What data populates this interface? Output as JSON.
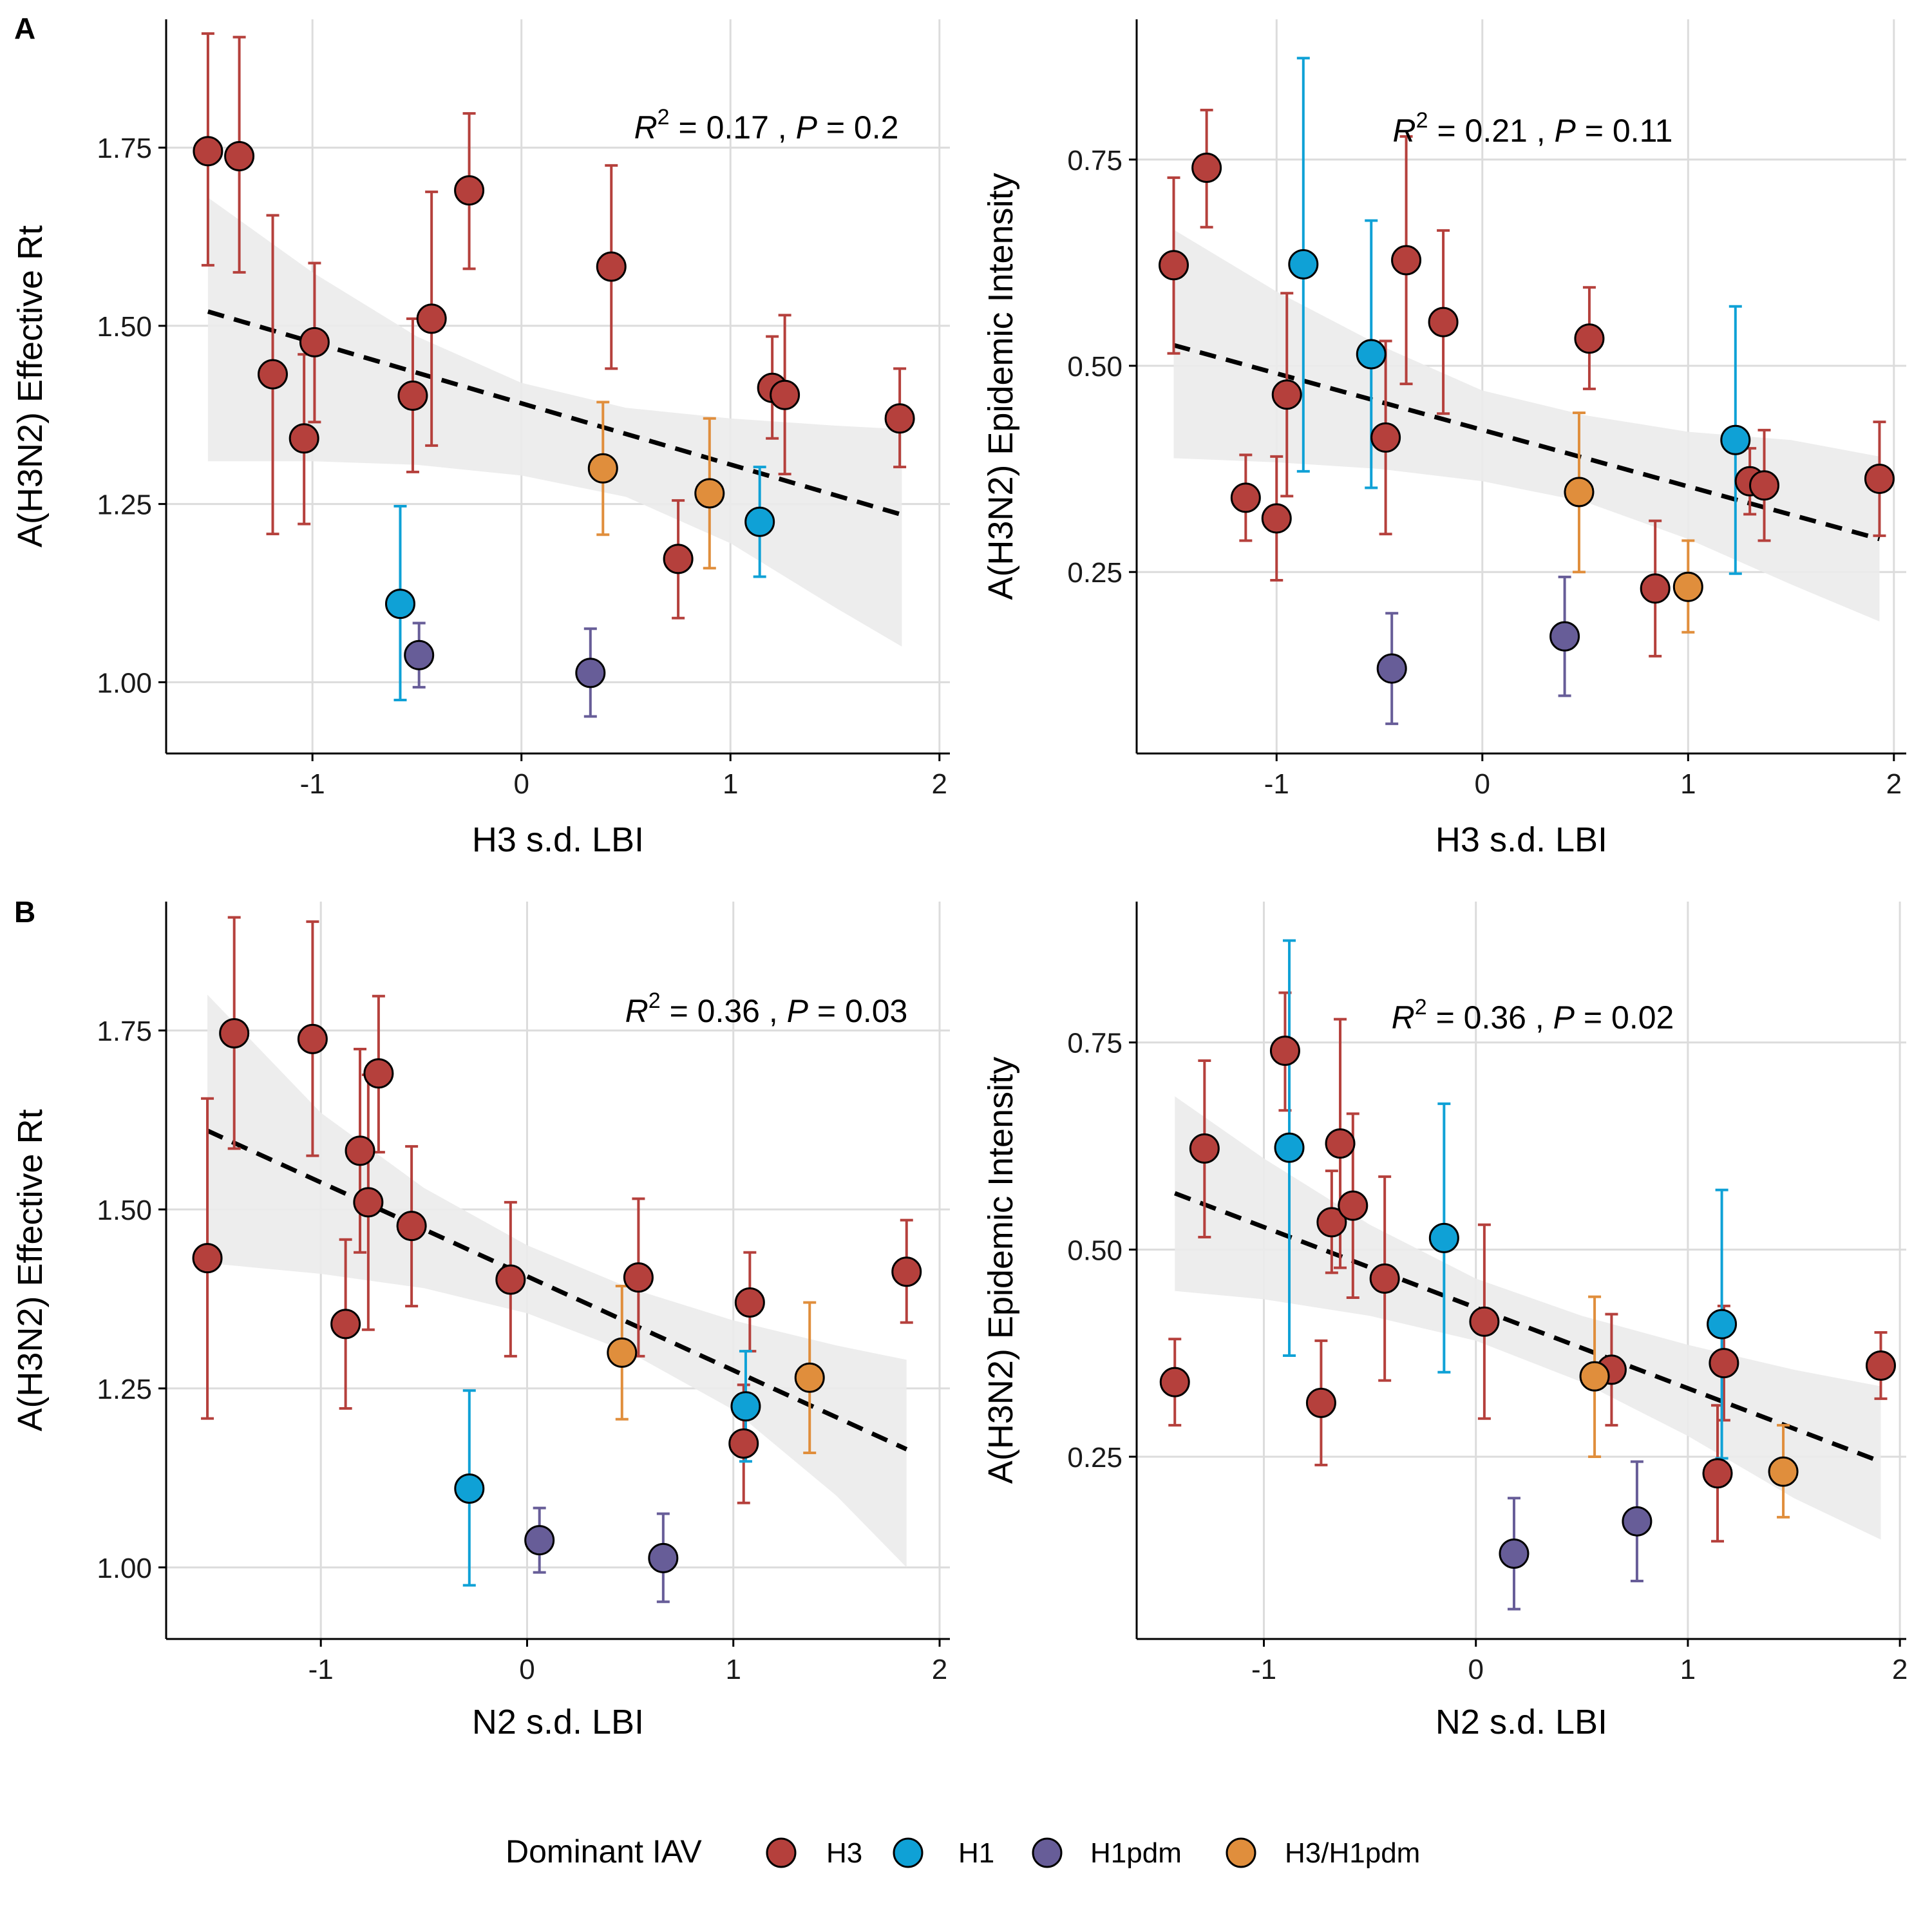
{
  "colors": {
    "H3": "#B5403C",
    "H1": "#0FA1D6",
    "H1pdm": "#675D98",
    "H3/H1pdm": "#E08E3C",
    "band": "#EBEBEB",
    "grid": "#DCDCDC",
    "fit": "#000000"
  },
  "legend": {
    "title": "Dominant IAV",
    "items": [
      "H3",
      "H1",
      "H1pdm",
      "H3/H1pdm"
    ]
  },
  "panel_labels": [
    "A",
    "B"
  ],
  "chart_data": [
    {
      "type": "scatter",
      "panel": "A",
      "xlabel": "H3 s.d. LBI",
      "ylabel": "A(H3N2) Effective Rt",
      "xlim": [
        -1.7,
        2.05
      ],
      "ylim": [
        0.9,
        1.93
      ],
      "xticks": [
        -1,
        0,
        1,
        2
      ],
      "xtick_labels": [
        "-1",
        "0",
        "1",
        "2"
      ],
      "yticks": [
        1.0,
        1.25,
        1.5,
        1.75
      ],
      "ytick_labels": [
        "1.00",
        "1.25",
        "1.50",
        "1.75"
      ],
      "annotation": {
        "r2": "0.17",
        "p": "0.2"
      },
      "fit": {
        "x": [
          -1.5,
          1.82
        ],
        "y": [
          1.52,
          1.235
        ]
      },
      "band": {
        "x": [
          -1.5,
          -1.0,
          -0.5,
          0.0,
          0.5,
          1.0,
          1.5,
          1.82
        ],
        "lower": [
          1.31,
          1.31,
          1.305,
          1.29,
          1.26,
          1.195,
          1.105,
          1.05
        ],
        "upper": [
          1.68,
          1.575,
          1.485,
          1.42,
          1.385,
          1.37,
          1.36,
          1.355
        ]
      },
      "points": [
        {
          "x": -1.5,
          "y": 1.745,
          "lo": 1.585,
          "hi": 1.91,
          "group": "H3"
        },
        {
          "x": -1.35,
          "y": 1.738,
          "lo": 1.575,
          "hi": 1.905,
          "group": "H3"
        },
        {
          "x": -1.19,
          "y": 1.432,
          "lo": 1.208,
          "hi": 1.655,
          "group": "H3"
        },
        {
          "x": -1.04,
          "y": 1.342,
          "lo": 1.222,
          "hi": 1.46,
          "group": "H3"
        },
        {
          "x": -0.99,
          "y": 1.477,
          "lo": 1.365,
          "hi": 1.588,
          "group": "H3"
        },
        {
          "x": -0.52,
          "y": 1.402,
          "lo": 1.295,
          "hi": 1.51,
          "group": "H3"
        },
        {
          "x": -0.43,
          "y": 1.51,
          "lo": 1.332,
          "hi": 1.688,
          "group": "H3"
        },
        {
          "x": -0.25,
          "y": 1.69,
          "lo": 1.58,
          "hi": 1.798,
          "group": "H3"
        },
        {
          "x": 0.43,
          "y": 1.583,
          "lo": 1.44,
          "hi": 1.725,
          "group": "H3"
        },
        {
          "x": 0.75,
          "y": 1.173,
          "lo": 1.09,
          "hi": 1.255,
          "group": "H3"
        },
        {
          "x": 1.2,
          "y": 1.413,
          "lo": 1.342,
          "hi": 1.485,
          "group": "H3"
        },
        {
          "x": 1.26,
          "y": 1.403,
          "lo": 1.292,
          "hi": 1.515,
          "group": "H3"
        },
        {
          "x": 1.81,
          "y": 1.37,
          "lo": 1.302,
          "hi": 1.44,
          "group": "H3"
        },
        {
          "x": -0.58,
          "y": 1.11,
          "lo": 0.975,
          "hi": 1.247,
          "group": "H1"
        },
        {
          "x": 1.14,
          "y": 1.225,
          "lo": 1.148,
          "hi": 1.302,
          "group": "H1"
        },
        {
          "x": -0.49,
          "y": 1.038,
          "lo": 0.993,
          "hi": 1.083,
          "group": "H1pdm"
        },
        {
          "x": 0.33,
          "y": 1.013,
          "lo": 0.952,
          "hi": 1.075,
          "group": "H1pdm"
        },
        {
          "x": 0.39,
          "y": 1.3,
          "lo": 1.207,
          "hi": 1.393,
          "group": "H3/H1pdm"
        },
        {
          "x": 0.9,
          "y": 1.265,
          "lo": 1.16,
          "hi": 1.37,
          "group": "H3/H1pdm"
        }
      ]
    },
    {
      "type": "scatter",
      "panel": "A",
      "xlabel": "H3 s.d. LBI",
      "ylabel": "A(H3N2) Epidemic Intensity",
      "xlim": [
        -1.68,
        2.06
      ],
      "ylim": [
        0.03,
        0.92
      ],
      "xticks": [
        -1,
        0,
        1,
        2
      ],
      "xtick_labels": [
        "-1",
        "0",
        "1",
        "2"
      ],
      "yticks": [
        0.25,
        0.5,
        0.75
      ],
      "ytick_labels": [
        "0.25",
        "0.50",
        "0.75"
      ],
      "annotation": {
        "r2": "0.21",
        "p": "0.11"
      },
      "fit": {
        "x": [
          -1.5,
          1.93
        ],
        "y": [
          0.525,
          0.29
        ]
      },
      "band": {
        "x": [
          -1.5,
          -1.0,
          -0.5,
          0.0,
          0.5,
          1.0,
          1.5,
          1.93
        ],
        "lower": [
          0.388,
          0.383,
          0.375,
          0.36,
          0.335,
          0.29,
          0.235,
          0.19
        ],
        "upper": [
          0.665,
          0.59,
          0.525,
          0.47,
          0.44,
          0.42,
          0.41,
          0.39
        ]
      },
      "points": [
        {
          "x": -1.5,
          "y": 0.622,
          "lo": 0.515,
          "hi": 0.728,
          "group": "H3"
        },
        {
          "x": -1.34,
          "y": 0.74,
          "lo": 0.668,
          "hi": 0.81,
          "group": "H3"
        },
        {
          "x": -1.15,
          "y": 0.34,
          "lo": 0.288,
          "hi": 0.392,
          "group": "H3"
        },
        {
          "x": -1.0,
          "y": 0.315,
          "lo": 0.24,
          "hi": 0.39,
          "group": "H3"
        },
        {
          "x": -0.95,
          "y": 0.465,
          "lo": 0.342,
          "hi": 0.588,
          "group": "H3"
        },
        {
          "x": -0.47,
          "y": 0.413,
          "lo": 0.296,
          "hi": 0.53,
          "group": "H3"
        },
        {
          "x": -0.37,
          "y": 0.628,
          "lo": 0.478,
          "hi": 0.778,
          "group": "H3"
        },
        {
          "x": -0.19,
          "y": 0.553,
          "lo": 0.442,
          "hi": 0.664,
          "group": "H3"
        },
        {
          "x": 0.52,
          "y": 0.533,
          "lo": 0.472,
          "hi": 0.595,
          "group": "H3"
        },
        {
          "x": 0.84,
          "y": 0.23,
          "lo": 0.148,
          "hi": 0.312,
          "group": "H3"
        },
        {
          "x": 1.3,
          "y": 0.36,
          "lo": 0.32,
          "hi": 0.4,
          "group": "H3"
        },
        {
          "x": 1.37,
          "y": 0.355,
          "lo": 0.288,
          "hi": 0.422,
          "group": "H3"
        },
        {
          "x": 1.93,
          "y": 0.363,
          "lo": 0.294,
          "hi": 0.432,
          "group": "H3"
        },
        {
          "x": -0.87,
          "y": 0.623,
          "lo": 0.372,
          "hi": 0.873,
          "group": "H1"
        },
        {
          "x": -0.54,
          "y": 0.514,
          "lo": 0.352,
          "hi": 0.676,
          "group": "H1"
        },
        {
          "x": 1.23,
          "y": 0.41,
          "lo": 0.248,
          "hi": 0.572,
          "group": "H1"
        },
        {
          "x": -0.44,
          "y": 0.133,
          "lo": 0.066,
          "hi": 0.2,
          "group": "H1pdm"
        },
        {
          "x": 0.4,
          "y": 0.172,
          "lo": 0.1,
          "hi": 0.244,
          "group": "H1pdm"
        },
        {
          "x": 0.47,
          "y": 0.347,
          "lo": 0.25,
          "hi": 0.443,
          "group": "H3/H1pdm"
        },
        {
          "x": 1.0,
          "y": 0.232,
          "lo": 0.177,
          "hi": 0.288,
          "group": "H3/H1pdm"
        }
      ]
    },
    {
      "type": "scatter",
      "panel": "B",
      "xlabel": "N2 s.d. LBI",
      "ylabel": "A(H3N2) Effective Rt",
      "xlim": [
        -1.75,
        2.05
      ],
      "ylim": [
        0.9,
        1.93
      ],
      "xticks": [
        -1,
        0,
        1,
        2
      ],
      "xtick_labels": [
        "-1",
        "0",
        "1",
        "2"
      ],
      "yticks": [
        1.0,
        1.25,
        1.5,
        1.75
      ],
      "ytick_labels": [
        "1.00",
        "1.25",
        "1.50",
        "1.75"
      ],
      "annotation": {
        "r2": "0.36",
        "p": "0.03"
      },
      "fit": {
        "x": [
          -1.55,
          1.84
        ],
        "y": [
          1.61,
          1.165
        ]
      },
      "band": {
        "x": [
          -1.55,
          -1.0,
          -0.5,
          0.0,
          0.5,
          1.0,
          1.5,
          1.84
        ],
        "lower": [
          1.425,
          1.41,
          1.39,
          1.355,
          1.3,
          1.22,
          1.1,
          1.0
        ],
        "upper": [
          1.8,
          1.635,
          1.53,
          1.45,
          1.39,
          1.345,
          1.31,
          1.29
        ]
      },
      "points": [
        {
          "x": -1.55,
          "y": 1.432,
          "lo": 1.208,
          "hi": 1.655,
          "group": "H3"
        },
        {
          "x": -1.42,
          "y": 1.746,
          "lo": 1.585,
          "hi": 1.908,
          "group": "H3"
        },
        {
          "x": -1.04,
          "y": 1.738,
          "lo": 1.575,
          "hi": 1.902,
          "group": "H3"
        },
        {
          "x": -0.88,
          "y": 1.34,
          "lo": 1.222,
          "hi": 1.458,
          "group": "H3"
        },
        {
          "x": -0.81,
          "y": 1.582,
          "lo": 1.44,
          "hi": 1.724,
          "group": "H3"
        },
        {
          "x": -0.77,
          "y": 1.51,
          "lo": 1.332,
          "hi": 1.688,
          "group": "H3"
        },
        {
          "x": -0.72,
          "y": 1.69,
          "lo": 1.58,
          "hi": 1.798,
          "group": "H3"
        },
        {
          "x": -0.56,
          "y": 1.477,
          "lo": 1.365,
          "hi": 1.588,
          "group": "H3"
        },
        {
          "x": -0.08,
          "y": 1.402,
          "lo": 1.295,
          "hi": 1.51,
          "group": "H3"
        },
        {
          "x": 0.54,
          "y": 1.405,
          "lo": 1.295,
          "hi": 1.515,
          "group": "H3"
        },
        {
          "x": 1.05,
          "y": 1.173,
          "lo": 1.09,
          "hi": 1.255,
          "group": "H3"
        },
        {
          "x": 1.08,
          "y": 1.37,
          "lo": 1.302,
          "hi": 1.44,
          "group": "H3"
        },
        {
          "x": 1.84,
          "y": 1.413,
          "lo": 1.342,
          "hi": 1.485,
          "group": "H3"
        },
        {
          "x": -0.28,
          "y": 1.11,
          "lo": 0.975,
          "hi": 1.247,
          "group": "H1"
        },
        {
          "x": 1.06,
          "y": 1.225,
          "lo": 1.148,
          "hi": 1.302,
          "group": "H1"
        },
        {
          "x": 0.06,
          "y": 1.038,
          "lo": 0.993,
          "hi": 1.083,
          "group": "H1pdm"
        },
        {
          "x": 0.66,
          "y": 1.013,
          "lo": 0.952,
          "hi": 1.075,
          "group": "H1pdm"
        },
        {
          "x": 0.46,
          "y": 1.3,
          "lo": 1.207,
          "hi": 1.393,
          "group": "H3/H1pdm"
        },
        {
          "x": 1.37,
          "y": 1.265,
          "lo": 1.16,
          "hi": 1.37,
          "group": "H3/H1pdm"
        }
      ]
    },
    {
      "type": "scatter",
      "panel": "B",
      "xlabel": "N2 s.d. LBI",
      "ylabel": "A(H3N2) Epidemic Intensity",
      "xlim": [
        -1.6,
        2.03
      ],
      "ylim": [
        0.03,
        0.92
      ],
      "xticks": [
        -1,
        0,
        1,
        2
      ],
      "xtick_labels": [
        "-1",
        "0",
        "1",
        "2"
      ],
      "yticks": [
        0.25,
        0.5,
        0.75
      ],
      "ytick_labels": [
        "0.25",
        "0.50",
        "0.75"
      ],
      "annotation": {
        "r2": "0.36",
        "p": "0.02"
      },
      "fit": {
        "x": [
          -1.42,
          1.91
        ],
        "y": [
          0.568,
          0.244
        ]
      },
      "band": {
        "x": [
          -1.42,
          -1.0,
          -0.5,
          0.0,
          0.5,
          1.0,
          1.5,
          1.91
        ],
        "lower": [
          0.45,
          0.44,
          0.42,
          0.39,
          0.34,
          0.275,
          0.2,
          0.15
        ],
        "upper": [
          0.685,
          0.61,
          0.53,
          0.465,
          0.42,
          0.385,
          0.355,
          0.335
        ]
      },
      "points": [
        {
          "x": -1.42,
          "y": 0.34,
          "lo": 0.288,
          "hi": 0.392,
          "group": "H3"
        },
        {
          "x": -1.28,
          "y": 0.622,
          "lo": 0.515,
          "hi": 0.728,
          "group": "H3"
        },
        {
          "x": -0.9,
          "y": 0.74,
          "lo": 0.668,
          "hi": 0.81,
          "group": "H3"
        },
        {
          "x": -0.73,
          "y": 0.315,
          "lo": 0.24,
          "hi": 0.39,
          "group": "H3"
        },
        {
          "x": -0.68,
          "y": 0.533,
          "lo": 0.472,
          "hi": 0.595,
          "group": "H3"
        },
        {
          "x": -0.64,
          "y": 0.628,
          "lo": 0.478,
          "hi": 0.778,
          "group": "H3"
        },
        {
          "x": -0.58,
          "y": 0.553,
          "lo": 0.442,
          "hi": 0.664,
          "group": "H3"
        },
        {
          "x": -0.43,
          "y": 0.465,
          "lo": 0.342,
          "hi": 0.588,
          "group": "H3"
        },
        {
          "x": 0.04,
          "y": 0.413,
          "lo": 0.296,
          "hi": 0.53,
          "group": "H3"
        },
        {
          "x": 0.64,
          "y": 0.355,
          "lo": 0.288,
          "hi": 0.422,
          "group": "H3"
        },
        {
          "x": 1.14,
          "y": 0.23,
          "lo": 0.148,
          "hi": 0.312,
          "group": "H3"
        },
        {
          "x": 1.17,
          "y": 0.363,
          "lo": 0.294,
          "hi": 0.432,
          "group": "H3"
        },
        {
          "x": 1.91,
          "y": 0.36,
          "lo": 0.32,
          "hi": 0.4,
          "group": "H3"
        },
        {
          "x": -0.88,
          "y": 0.623,
          "lo": 0.372,
          "hi": 0.873,
          "group": "H1"
        },
        {
          "x": -0.15,
          "y": 0.514,
          "lo": 0.352,
          "hi": 0.676,
          "group": "H1"
        },
        {
          "x": 1.16,
          "y": 0.41,
          "lo": 0.248,
          "hi": 0.572,
          "group": "H1"
        },
        {
          "x": 0.18,
          "y": 0.133,
          "lo": 0.066,
          "hi": 0.2,
          "group": "H1pdm"
        },
        {
          "x": 0.76,
          "y": 0.172,
          "lo": 0.1,
          "hi": 0.244,
          "group": "H1pdm"
        },
        {
          "x": 0.56,
          "y": 0.347,
          "lo": 0.25,
          "hi": 0.443,
          "group": "H3/H1pdm"
        },
        {
          "x": 1.45,
          "y": 0.232,
          "lo": 0.177,
          "hi": 0.288,
          "group": "H3/H1pdm"
        }
      ]
    }
  ]
}
